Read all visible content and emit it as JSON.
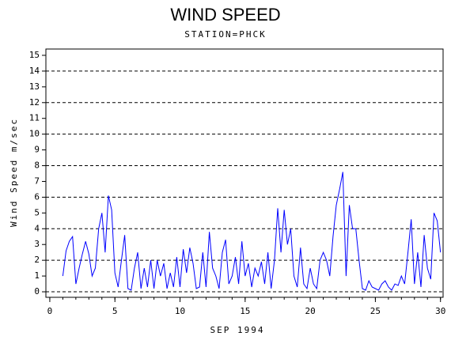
{
  "chart_data": {
    "type": "line",
    "title": "WIND SPEED",
    "subtitle": "STATION=PHCK",
    "x_label": "SEP 1994",
    "y_label": "Wind Speed m/sec",
    "x": [
      1,
      1.25,
      1.5,
      1.75,
      2,
      2.25,
      2.5,
      2.75,
      3,
      3.25,
      3.5,
      3.75,
      4,
      4.25,
      4.5,
      4.75,
      5,
      5.25,
      5.5,
      5.75,
      6,
      6.25,
      6.5,
      6.75,
      7,
      7.25,
      7.5,
      7.75,
      8,
      8.25,
      8.5,
      8.75,
      9,
      9.25,
      9.5,
      9.75,
      10,
      10.25,
      10.5,
      10.75,
      11,
      11.25,
      11.5,
      11.75,
      12,
      12.25,
      12.5,
      12.75,
      13,
      13.25,
      13.5,
      13.75,
      14,
      14.25,
      14.5,
      14.75,
      15,
      15.25,
      15.5,
      15.75,
      16,
      16.25,
      16.5,
      16.75,
      17,
      17.25,
      17.5,
      17.75,
      18,
      18.25,
      18.5,
      18.75,
      19,
      19.25,
      19.5,
      19.75,
      20,
      20.25,
      20.5,
      20.75,
      21,
      21.25,
      21.5,
      21.75,
      22,
      22.25,
      22.5,
      22.75,
      23,
      23.25,
      23.5,
      23.75,
      24,
      24.25,
      24.5,
      24.75,
      25,
      25.25,
      25.5,
      25.75,
      26,
      26.25,
      26.5,
      26.75,
      27,
      27.25,
      27.5,
      27.75,
      28,
      28.25,
      28.5,
      28.75,
      29,
      29.25,
      29.5,
      29.75,
      30
    ],
    "series": [
      {
        "name": "Wind Speed",
        "color": "#0000ff",
        "values": [
          1.0,
          2.6,
          3.2,
          3.5,
          0.5,
          1.5,
          2.4,
          3.2,
          2.4,
          1.0,
          1.5,
          4.0,
          5.0,
          2.5,
          6.1,
          5.2,
          1.2,
          0.3,
          2.0,
          3.6,
          0.2,
          0.1,
          1.5,
          2.5,
          0.2,
          1.5,
          0.3,
          2.0,
          0.2,
          2.0,
          1.0,
          1.8,
          0.2,
          1.2,
          0.3,
          2.2,
          0.3,
          2.7,
          1.2,
          2.8,
          1.8,
          0.2,
          0.3,
          2.5,
          0.3,
          3.8,
          1.5,
          1.0,
          0.2,
          2.5,
          3.3,
          0.5,
          1.0,
          2.2,
          0.5,
          3.2,
          1.0,
          1.8,
          0.3,
          1.5,
          1.0,
          1.9,
          0.5,
          2.5,
          0.2,
          2.0,
          5.3,
          2.5,
          5.2,
          3.0,
          4.0,
          1.0,
          0.3,
          2.8,
          0.5,
          0.2,
          1.5,
          0.5,
          0.2,
          2.0,
          2.5,
          2.0,
          1.0,
          3.5,
          5.5,
          6.5,
          7.6,
          1.0,
          5.5,
          4.0,
          4.0,
          2.0,
          0.2,
          0.1,
          0.7,
          0.3,
          0.2,
          0.1,
          0.5,
          0.7,
          0.3,
          0.1,
          0.5,
          0.4,
          1.0,
          0.5,
          2.5,
          4.6,
          0.5,
          2.5,
          0.3,
          3.6,
          1.5,
          0.8,
          5.0,
          4.5,
          2.5
        ]
      }
    ],
    "xlim": [
      -0.3,
      30.2
    ],
    "xticks": [
      0,
      5,
      10,
      15,
      20,
      25,
      30
    ],
    "xminorticks": [
      0,
      1,
      2,
      3,
      4,
      5,
      6,
      7,
      8,
      9,
      10,
      11,
      12,
      13,
      14,
      15,
      16,
      17,
      18,
      19,
      20,
      21,
      22,
      23,
      24,
      25,
      26,
      27,
      28,
      29,
      30
    ],
    "ylim": [
      -0.35,
      15.4
    ],
    "yticks": [
      0,
      1,
      2,
      3,
      4,
      5,
      6,
      7,
      8,
      9,
      10,
      11,
      12,
      13,
      14,
      15
    ],
    "gridlines": [
      0,
      2,
      4,
      6,
      8,
      10,
      12,
      14
    ]
  }
}
